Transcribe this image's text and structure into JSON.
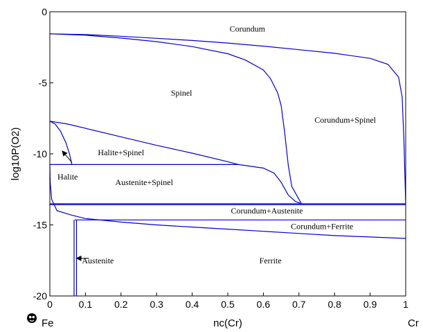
{
  "chart_data": {
    "type": "line",
    "title": "",
    "xlabel": "nc(Cr)",
    "ylabel": "log10P(O2)",
    "xlim": [
      0,
      1
    ],
    "ylim": [
      -20,
      0
    ],
    "x_ticks": [
      "0",
      "0.1",
      "0.2",
      "0.3",
      "0.4",
      "0.5",
      "0.6",
      "0.7",
      "0.8",
      "0.9",
      "1"
    ],
    "y_ticks": [
      "0",
      "-5",
      "-10",
      "-15",
      "-20"
    ],
    "end_labels": {
      "left": "Fe",
      "right": "Cr"
    },
    "line_color": "#0000cc",
    "grid": false,
    "series": [
      {
        "x": [
          0,
          0.1,
          0.2,
          0.3,
          0.4,
          0.5,
          0.6,
          0.7,
          0.8,
          0.9,
          0.95,
          0.98,
          0.99,
          0.995,
          1.0
        ],
        "y": [
          -1.55,
          -1.6,
          -1.72,
          -1.87,
          -2.02,
          -2.2,
          -2.42,
          -2.67,
          -2.92,
          -3.28,
          -3.7,
          -4.6,
          -6.0,
          -9.0,
          -13.5
        ]
      },
      {
        "x": [
          0,
          0.1,
          0.2,
          0.3,
          0.4,
          0.5,
          0.55,
          0.6,
          0.62,
          0.64,
          0.65,
          0.66,
          0.67,
          0.68,
          0.7,
          0.707
        ],
        "y": [
          -1.55,
          -1.65,
          -1.85,
          -2.1,
          -2.45,
          -2.95,
          -3.4,
          -4.1,
          -4.7,
          -5.7,
          -6.6,
          -8.5,
          -10.8,
          -12.3,
          -13.2,
          -13.5
        ]
      },
      {
        "x": [
          0,
          0.05,
          0.1,
          0.2,
          0.3,
          0.4,
          0.5,
          0.53
        ],
        "y": [
          -7.7,
          -7.9,
          -8.2,
          -8.8,
          -9.4,
          -9.95,
          -10.55,
          -10.75
        ]
      },
      {
        "x": [
          0,
          0.53,
          0.6,
          0.63,
          0.65,
          0.67,
          0.69,
          0.707
        ],
        "y": [
          -10.75,
          -10.75,
          -11.0,
          -11.35,
          -12.0,
          -12.9,
          -13.35,
          -13.5
        ]
      },
      {
        "x": [
          0,
          1
        ],
        "y": [
          -13.5,
          -13.5
        ]
      },
      {
        "x": [
          0,
          1
        ],
        "y": [
          -13.58,
          -13.58
        ]
      },
      {
        "x": [
          0.07,
          1
        ],
        "y": [
          -14.65,
          -14.65
        ]
      },
      {
        "x": [
          0,
          0.001,
          0.005,
          0.02,
          0.06,
          0.1,
          0.2,
          0.3,
          0.4,
          0.5,
          0.6,
          0.7,
          0.8,
          0.9,
          1.0
        ],
        "y": [
          -10.75,
          -12.0,
          -13.2,
          -14.0,
          -14.3,
          -14.55,
          -14.8,
          -15.0,
          -15.15,
          -15.3,
          -15.45,
          -15.6,
          -15.75,
          -15.85,
          -15.95
        ]
      },
      {
        "x": [
          0,
          0.015,
          0.03,
          0.045,
          0.055,
          0.062
        ],
        "y": [
          -7.7,
          -7.9,
          -8.4,
          -9.2,
          -10.0,
          -10.75
        ]
      },
      {
        "x": [
          0.068,
          0.068
        ],
        "y": [
          -14.65,
          -20
        ]
      },
      {
        "x": [
          0.075,
          0.075
        ],
        "y": [
          -14.65,
          -20
        ]
      }
    ],
    "region_labels": [
      {
        "text": "Corundum",
        "x": 0.555,
        "y": -1.2
      },
      {
        "text": "Spinel",
        "x": 0.37,
        "y": -5.7
      },
      {
        "text": "Corundum+Spinel",
        "x": 0.83,
        "y": -7.6
      },
      {
        "text": "Halite+Spinel",
        "x": 0.2,
        "y": -9.9
      },
      {
        "text": "Halite",
        "x": 0.05,
        "y": -11.6
      },
      {
        "text": "Austenite+Spinel",
        "x": 0.265,
        "y": -12.0
      },
      {
        "text": "Corundum+Austenite",
        "x": 0.61,
        "y": -14.0
      },
      {
        "text": "Corundum+Ferrite",
        "x": 0.765,
        "y": -15.1
      },
      {
        "text": "Austenite",
        "x": 0.135,
        "y": -17.5
      },
      {
        "text": "Ferrite",
        "x": 0.62,
        "y": -17.5
      }
    ],
    "arrows": [
      {
        "x1": 0.062,
        "y1": -10.6,
        "x2": 0.035,
        "y2": -9.8
      },
      {
        "x1": 0.11,
        "y1": -17.35,
        "x2": 0.075,
        "y2": -17.35
      }
    ]
  }
}
